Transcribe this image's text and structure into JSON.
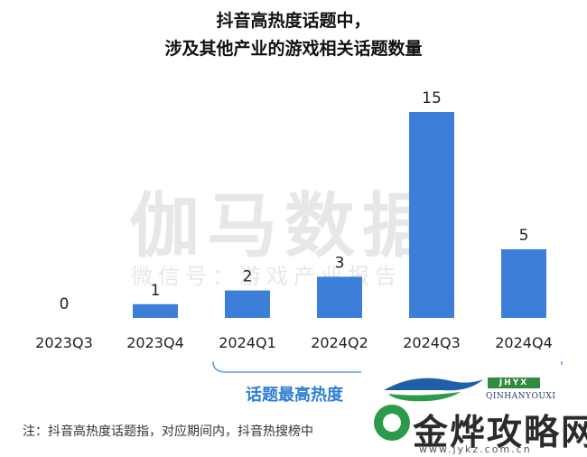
{
  "title_lines": [
    "抖音高热度话题中，",
    "涉及其他产业的游戏相关话题数量"
  ],
  "watermark": {
    "main": "伽马数据",
    "sub": "微信号：游戏产业报告"
  },
  "annotation": "话题最高热度",
  "footnote": "注：抖音高热度话题指，对应期间内，抖音热搜榜中",
  "ad": {
    "brand_box": "JHYX",
    "brand_en": "QINHANYOUXI",
    "site_name": "金烨攻略网",
    "url": "www.jykz.com.cn"
  },
  "colors": {
    "bar": "#3d7fd8",
    "annotation": "#2f7fd2",
    "bracket": "#5b9be0"
  },
  "chart_data": {
    "type": "bar",
    "title": "抖音高热度话题中，涉及其他产业的游戏相关话题数量",
    "categories": [
      "2023Q3",
      "2023Q4",
      "2024Q1",
      "2024Q2",
      "2024Q3",
      "2024Q4"
    ],
    "values": [
      0,
      1,
      2,
      3,
      15,
      5
    ],
    "data_labels": [
      "0",
      "1",
      "2",
      "3",
      "15",
      "5"
    ],
    "xlabel": "",
    "ylabel": "",
    "ylim": [
      0,
      15
    ],
    "grid": false,
    "legend": "none"
  }
}
